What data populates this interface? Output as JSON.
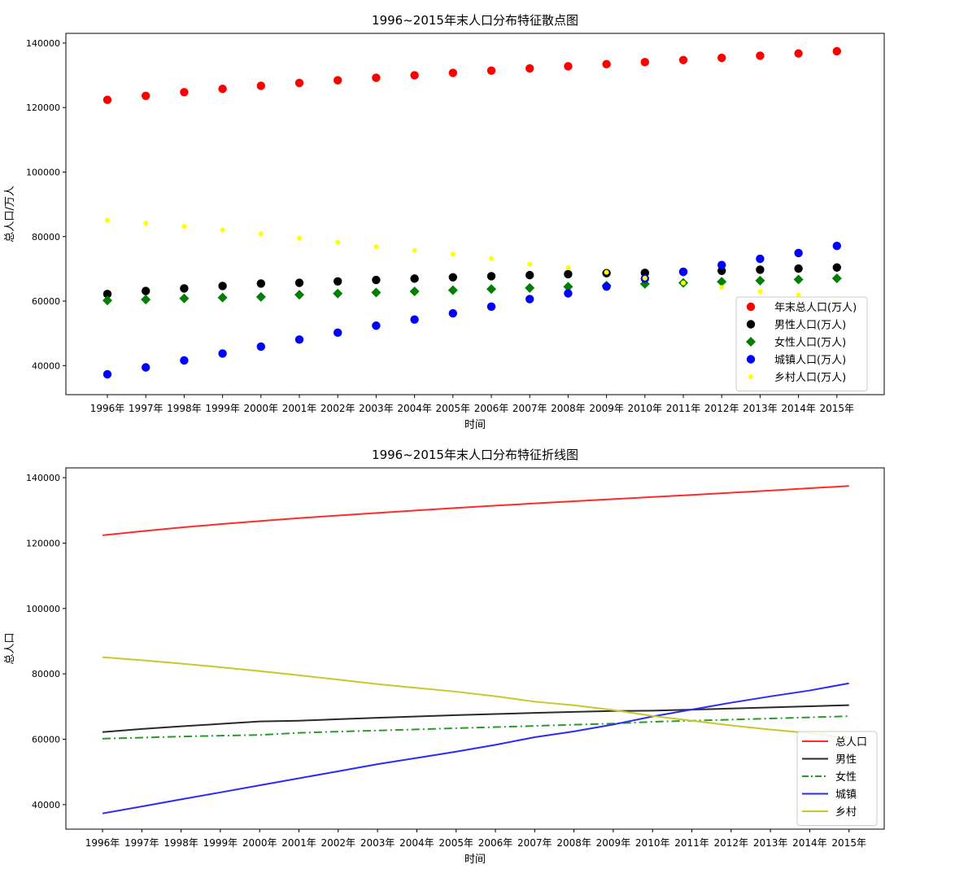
{
  "chart_data": [
    {
      "type": "scatter",
      "title": "1996~2015年末人口分布特征散点图",
      "xlabel": "时间",
      "ylabel": "总人口/万人",
      "categories": [
        "1996年",
        "1997年",
        "1998年",
        "1999年",
        "2000年",
        "2001年",
        "2002年",
        "2003年",
        "2004年",
        "2005年",
        "2006年",
        "2007年",
        "2008年",
        "2009年",
        "2010年",
        "2011年",
        "2012年",
        "2013年",
        "2014年",
        "2015年"
      ],
      "ylim": [
        31000,
        143000
      ],
      "yticks": [
        40000,
        60000,
        80000,
        100000,
        120000,
        140000
      ],
      "legend_position": "lower-right",
      "series": [
        {
          "name": "年末总人口(万人)",
          "color": "#ff0000",
          "marker": "circle",
          "values": [
            122389,
            123626,
            124761,
            125786,
            126743,
            127627,
            128453,
            129227,
            129988,
            130756,
            131448,
            132129,
            132802,
            133450,
            134091,
            134735,
            135404,
            136072,
            136782,
            137462
          ]
        },
        {
          "name": "男性人口(万人)",
          "color": "#000000",
          "marker": "circle",
          "values": [
            62200,
            63131,
            63940,
            64692,
            65437,
            65672,
            66115,
            66556,
            66976,
            67375,
            67728,
            68048,
            68357,
            68647,
            68748,
            69068,
            69395,
            69728,
            70079,
            70414
          ]
        },
        {
          "name": "女性人口(万人)",
          "color": "#008000",
          "marker": "diamond",
          "values": [
            60189,
            60495,
            60821,
            61094,
            61306,
            61955,
            62338,
            62671,
            63012,
            63381,
            63720,
            64081,
            64445,
            64803,
            65343,
            65667,
            66009,
            66344,
            66703,
            67048
          ]
        },
        {
          "name": "城镇人口(万人)",
          "color": "#0000ff",
          "marker": "circle",
          "values": [
            37304,
            39449,
            41608,
            43748,
            45906,
            48064,
            50212,
            52376,
            54283,
            56212,
            58288,
            60633,
            62403,
            64512,
            66978,
            69079,
            71182,
            73111,
            74916,
            77116
          ]
        },
        {
          "name": "乡村人口(万人)",
          "color": "#ffff00",
          "marker": "small-circle",
          "values": [
            85085,
            84177,
            83153,
            82038,
            80837,
            79563,
            78241,
            76851,
            75705,
            74544,
            73160,
            71496,
            70399,
            68938,
            67113,
            65656,
            64222,
            62961,
            61866,
            60346
          ]
        }
      ]
    },
    {
      "type": "line",
      "title": "1996~2015年末人口分布特征折线图",
      "xlabel": "时间",
      "ylabel": "总人口",
      "categories": [
        "1996年",
        "1997年",
        "1998年",
        "1999年",
        "2000年",
        "2001年",
        "2002年",
        "2003年",
        "2004年",
        "2005年",
        "2006年",
        "2007年",
        "2008年",
        "2009年",
        "2010年",
        "2011年",
        "2012年",
        "2013年",
        "2014年",
        "2015年"
      ],
      "ylim": [
        32500,
        143000
      ],
      "yticks": [
        40000,
        60000,
        80000,
        100000,
        120000,
        140000
      ],
      "legend_position": "lower-right",
      "series": [
        {
          "name": "总人口",
          "color": "#ff2a2a",
          "dash": "solid",
          "values": [
            122389,
            123626,
            124761,
            125786,
            126743,
            127627,
            128453,
            129227,
            129988,
            130756,
            131448,
            132129,
            132802,
            133450,
            134091,
            134735,
            135404,
            136072,
            136782,
            137462
          ]
        },
        {
          "name": "男性",
          "color": "#2a2a2a",
          "dash": "solid",
          "values": [
            62200,
            63131,
            63940,
            64692,
            65437,
            65672,
            66115,
            66556,
            66976,
            67375,
            67728,
            68048,
            68357,
            68647,
            68748,
            69068,
            69395,
            69728,
            70079,
            70414
          ]
        },
        {
          "name": "女性",
          "color": "#2a9a2a",
          "dash": "dashdot",
          "values": [
            60189,
            60495,
            60821,
            61094,
            61306,
            61955,
            62338,
            62671,
            63012,
            63381,
            63720,
            64081,
            64445,
            64803,
            65343,
            65667,
            66009,
            66344,
            66703,
            67048
          ]
        },
        {
          "name": "城镇",
          "color": "#2a2aff",
          "dash": "solid",
          "values": [
            37304,
            39449,
            41608,
            43748,
            45906,
            48064,
            50212,
            52376,
            54283,
            56212,
            58288,
            60633,
            62403,
            64512,
            66978,
            69079,
            71182,
            73111,
            74916,
            77116
          ]
        },
        {
          "name": "乡村",
          "color": "#c8c82a",
          "dash": "solid",
          "values": [
            85085,
            84177,
            83153,
            82038,
            80837,
            79563,
            78241,
            76851,
            75705,
            74544,
            73160,
            71496,
            70399,
            68938,
            67113,
            65656,
            64222,
            62961,
            61866,
            60346
          ]
        }
      ]
    }
  ]
}
